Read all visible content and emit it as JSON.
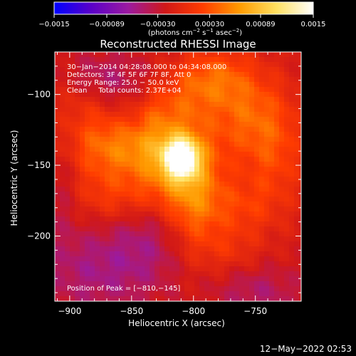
{
  "colorbar": {
    "colors": [
      "#0000ff",
      "#5a00c8",
      "#9b1aa0",
      "#d01818",
      "#ff3c00",
      "#ff9a00",
      "#ffe060",
      "#ffffff"
    ],
    "ticks": [
      "−0.0015",
      "−0.00089",
      "−0.00030",
      "0.00030",
      "0.00089",
      "0.0015"
    ],
    "tick_values": [
      -0.0015,
      -0.00089,
      -0.0003,
      0.0003,
      0.00089,
      0.0015
    ],
    "units_html": "(photons cm<tspan dy=\"-4\" font-size=\"7\">−2</tspan><tspan dy=\"4\"> s</tspan><tspan dy=\"-4\" font-size=\"7\">−1</tspan><tspan dy=\"4\"> asec</tspan><tspan dy=\"-4\" font-size=\"7\">−2</tspan><tspan dy=\"4\">)</tspan>",
    "units_text": "(photons cm−2 s−1 asec−2)"
  },
  "annotations": {
    "line1": "30−Jan−2014 04:28:08.000 to 04:34:08.000",
    "line2": "Detectors: 3F 4F 5F 6F 7F 8F, Att 0",
    "line3": "Energy Range: 25.0 − 50.0 keV",
    "line4": "Clean     Total counts: 2.37E+04",
    "peak": "Position of Peak = [−810,−145]"
  },
  "footer": {
    "date": "12−May−2022 02:53"
  },
  "chart_data": {
    "type": "heatmap",
    "title": "Reconstructed RHESSI Image",
    "xlabel": "Heliocentric X (arcsec)",
    "ylabel": "Heliocentric Y (arcsec)",
    "xlim": [
      -912,
      -713
    ],
    "ylim": [
      -246,
      -70
    ],
    "xticks": [
      -900,
      -850,
      -800,
      -750
    ],
    "xtick_labels": [
      "−900",
      "−850",
      "−800",
      "−750"
    ],
    "yticks": [
      -100,
      -150,
      -200
    ],
    "ytick_labels": [
      "−100",
      "−150",
      "−200"
    ],
    "zlim": [
      -0.0015,
      0.0015
    ],
    "peak_position": [
      -810,
      -145
    ],
    "sources": [
      {
        "x": -810,
        "y": -145,
        "amp": 1.0,
        "sx": 9,
        "sy": 9
      },
      {
        "x": -815,
        "y": -148,
        "amp": 0.45,
        "sx": 24,
        "sy": 22
      },
      {
        "x": -800,
        "y": -178,
        "amp": 0.35,
        "sx": 16,
        "sy": 26
      },
      {
        "x": -848,
        "y": -138,
        "amp": 0.28,
        "sx": 24,
        "sy": 14
      },
      {
        "x": -880,
        "y": -135,
        "amp": 0.25,
        "sx": 20,
        "sy": 18
      },
      {
        "x": -862,
        "y": -172,
        "amp": 0.22,
        "sx": 26,
        "sy": 14
      },
      {
        "x": -760,
        "y": -112,
        "amp": 0.3,
        "sx": 22,
        "sy": 22
      },
      {
        "x": -780,
        "y": -88,
        "amp": 0.28,
        "sx": 18,
        "sy": 14
      },
      {
        "x": -735,
        "y": -140,
        "amp": 0.26,
        "sx": 18,
        "sy": 28
      },
      {
        "x": -805,
        "y": -100,
        "amp": 0.22,
        "sx": 14,
        "sy": 18
      },
      {
        "x": -830,
        "y": -112,
        "amp": 0.18,
        "sx": 12,
        "sy": 14
      },
      {
        "x": -762,
        "y": -180,
        "amp": 0.2,
        "sx": 20,
        "sy": 14
      },
      {
        "x": -770,
        "y": -210,
        "amp": 0.14,
        "sx": 18,
        "sy": 12
      },
      {
        "x": -890,
        "y": -105,
        "amp": 0.12,
        "sx": 18,
        "sy": 12
      },
      {
        "x": -880,
        "y": -225,
        "amp": -0.22,
        "sx": 34,
        "sy": 22
      },
      {
        "x": -835,
        "y": -200,
        "amp": -0.18,
        "sx": 24,
        "sy": 24
      },
      {
        "x": -870,
        "y": -90,
        "amp": -0.2,
        "sx": 22,
        "sy": 14
      },
      {
        "x": -748,
        "y": -240,
        "amp": -0.18,
        "sx": 26,
        "sy": 14
      },
      {
        "x": -905,
        "y": -165,
        "amp": -0.12,
        "sx": 10,
        "sy": 26
      }
    ]
  }
}
